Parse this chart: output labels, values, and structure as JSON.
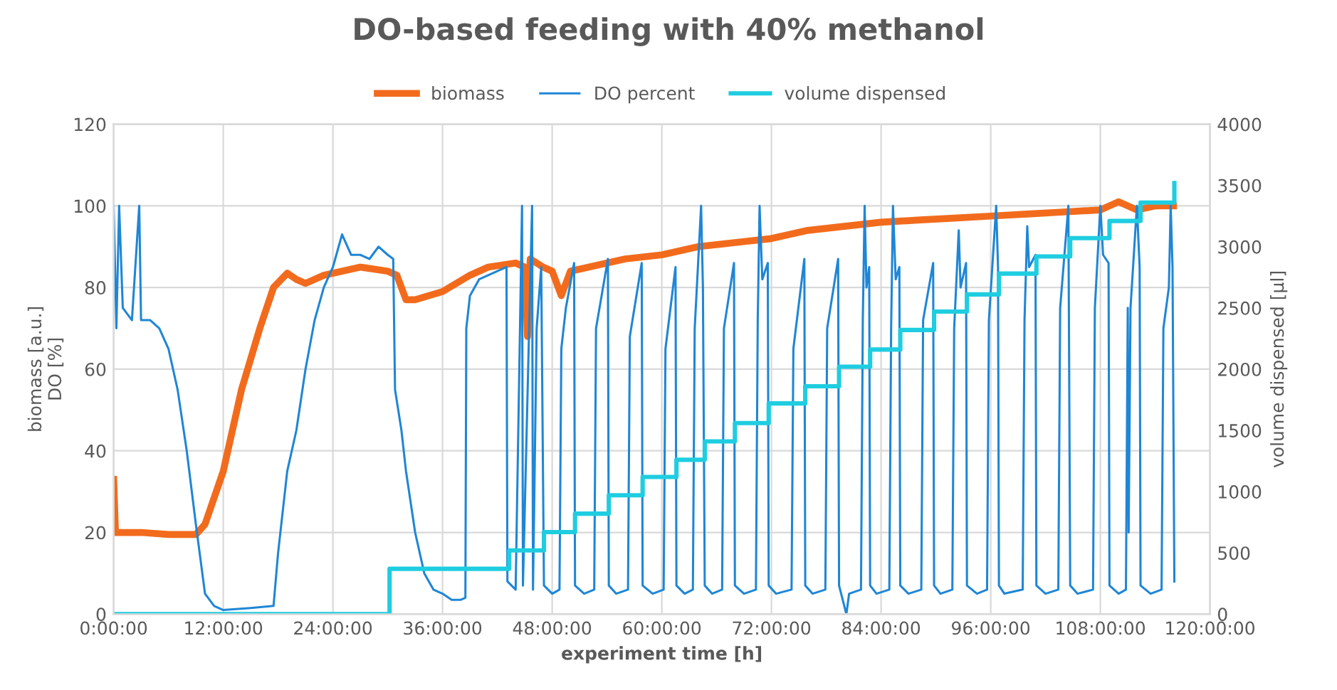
{
  "chart_data": {
    "type": "line",
    "title": "DO-based feeding with 40% methanol",
    "xlabel": "experiment time [h]",
    "ylabel": "biomass [a.u.]\nDO [%]",
    "y2label": "volume dispensed [µl]",
    "xlim": [
      0,
      120
    ],
    "xticks": [
      {
        "value": 0,
        "label": "0:00:00"
      },
      {
        "value": 12,
        "label": "12:00:00"
      },
      {
        "value": 24,
        "label": "24:00:00"
      },
      {
        "value": 36,
        "label": "36:00:00"
      },
      {
        "value": 48,
        "label": "48:00:00"
      },
      {
        "value": 60,
        "label": "60:00:00"
      },
      {
        "value": 72,
        "label": "72:00:00"
      },
      {
        "value": 84,
        "label": "84:00:00"
      },
      {
        "value": 96,
        "label": "96:00:00"
      },
      {
        "value": 108,
        "label": "108:00:00"
      },
      {
        "value": 120,
        "label": "120:00:00"
      }
    ],
    "ylim": [
      0,
      120
    ],
    "yticks": [
      0,
      20,
      40,
      60,
      80,
      100,
      120
    ],
    "y2lim": [
      0,
      4000
    ],
    "y2ticks": [
      0,
      500,
      1000,
      1500,
      2000,
      2500,
      3000,
      3500,
      4000
    ],
    "grid": true,
    "legend": "top",
    "marker": "none",
    "line_style": "solid",
    "series": [
      {
        "name": "biomass",
        "color": "#f26b1d",
        "x": [
          0,
          0.2,
          1,
          3,
          6,
          9,
          10,
          12,
          14,
          16,
          17.5,
          19,
          20,
          21,
          23,
          25,
          27,
          30,
          31,
          32,
          33,
          36,
          39,
          41,
          44,
          45,
          45.3,
          45.6,
          47,
          48,
          49,
          50,
          52,
          56,
          60,
          64,
          68,
          72,
          76,
          80,
          84,
          88,
          92,
          96,
          100,
          104,
          108,
          110,
          112,
          114,
          116
        ],
        "values": [
          33,
          20,
          20,
          20,
          19.5,
          19.5,
          22,
          35,
          55,
          70,
          80,
          83.5,
          82,
          81,
          83,
          84,
          85,
          84,
          83,
          77,
          77,
          79,
          83,
          85,
          86,
          85,
          68,
          87,
          85,
          84,
          78,
          84,
          85,
          87,
          88,
          90,
          91,
          92,
          94,
          95,
          96,
          96.5,
          97,
          97.5,
          98,
          98.5,
          99,
          101,
          99,
          100,
          100
        ]
      },
      {
        "name": "DO percent",
        "color": "#1f86d6",
        "x": [
          0,
          0.3,
          0.6,
          1,
          2,
          2.8,
          3,
          4,
          5,
          6,
          7,
          8,
          9,
          10,
          11,
          12,
          15,
          17.5,
          18,
          19,
          20,
          21,
          22,
          23,
          24,
          25,
          26,
          27,
          28,
          29,
          30,
          30.6,
          30.8,
          31.5,
          32,
          33,
          34,
          35,
          36,
          37,
          38,
          38.5,
          38.6,
          39,
          40,
          42,
          43,
          43.1,
          44,
          44.7,
          44.8,
          45.8,
          45.9,
          46.3,
          46.8,
          47.1,
          48,
          48.8,
          49,
          49.5,
          50.4,
          50.5,
          51.5,
          52.6,
          52.8,
          54.1,
          54.2,
          55,
          56.3,
          56.5,
          57.8,
          57.9,
          59,
          60.2,
          60.4,
          61.5,
          61.6,
          62.5,
          63.4,
          63.6,
          64.3,
          64.5,
          64.7,
          65.5,
          66.6,
          66.8,
          67.9,
          68,
          69,
          70.3,
          70.5,
          70.7,
          71,
          71.6,
          71.7,
          72.5,
          74.2,
          74.4,
          75.6,
          75.7,
          76.5,
          77.9,
          78.1,
          79.3,
          79.4,
          80.2,
          80.5,
          81.8,
          82,
          82.2,
          82.4,
          82.7,
          82.8,
          83.5,
          84.9,
          85.1,
          85.3,
          85.6,
          86,
          86.1,
          87,
          88.4,
          88.6,
          89.7,
          89.8,
          90.5,
          91.8,
          92,
          92.5,
          92.7,
          93.3,
          93.4,
          94.5,
          95.6,
          95.8,
          96.6,
          96.8,
          96.9,
          97.5,
          99.5,
          99.7,
          100,
          100.2,
          100.9,
          101,
          102,
          103.4,
          103.6,
          104.5,
          104.7,
          105.5,
          107.2,
          107.4,
          108,
          108.3,
          108.9,
          109,
          110,
          110.8,
          111,
          111.1,
          111.3,
          112,
          112.3,
          112.4,
          113.5,
          114.7,
          114.9,
          115.5,
          115.7,
          115.9,
          116.1
        ],
        "values": [
          100,
          70,
          100,
          75,
          72,
          100,
          72,
          72,
          70,
          65,
          55,
          40,
          22,
          5,
          2,
          1,
          1.5,
          2,
          15,
          35,
          45,
          60,
          72,
          80,
          85,
          93,
          88,
          88,
          87,
          90,
          88,
          87,
          55,
          45,
          35,
          20,
          10,
          6,
          5,
          3.5,
          3.5,
          4,
          70,
          78,
          82,
          84,
          85,
          8,
          6,
          100,
          7,
          100,
          6,
          70,
          85,
          7,
          5,
          6,
          65,
          75,
          86,
          7,
          5,
          6,
          70,
          87,
          7,
          5,
          6,
          68,
          86,
          7,
          5,
          6,
          65,
          85,
          7,
          5,
          6,
          70,
          100,
          80,
          7,
          5,
          6,
          70,
          86,
          7,
          5,
          6,
          72,
          100,
          82,
          86,
          7,
          5,
          6,
          65,
          87,
          7,
          5,
          6,
          70,
          87,
          7,
          0,
          5,
          6,
          72,
          100,
          80,
          85,
          7,
          5,
          6,
          70,
          100,
          82,
          85,
          7,
          5,
          6,
          72,
          86,
          7,
          5,
          6,
          70,
          94,
          80,
          86,
          7,
          5,
          6,
          72,
          100,
          85,
          7,
          5,
          6,
          72,
          95,
          85,
          88,
          7,
          5,
          6,
          75,
          100,
          7,
          5,
          6,
          75,
          100,
          88,
          86,
          7,
          5,
          6,
          75,
          20,
          75,
          100,
          85,
          7,
          5,
          6,
          70,
          80,
          100,
          85,
          8
        ]
      },
      {
        "name": "volume dispensed",
        "color": "#1fcde0",
        "type": "step",
        "axis": "y2",
        "x": [
          0,
          30.2,
          43.3,
          47.1,
          50.5,
          54.2,
          57.9,
          61.6,
          64.7,
          68,
          71.7,
          75.7,
          79.4,
          82.8,
          86.1,
          89.8,
          93.4,
          96.9,
          101,
          104.7,
          109,
          112.4,
          116.1
        ],
        "values": [
          0,
          370,
          520,
          670,
          820,
          970,
          1120,
          1260,
          1410,
          1560,
          1720,
          1860,
          2020,
          2160,
          2320,
          2470,
          2610,
          2780,
          2920,
          3070,
          3210,
          3360,
          3520
        ]
      }
    ]
  }
}
